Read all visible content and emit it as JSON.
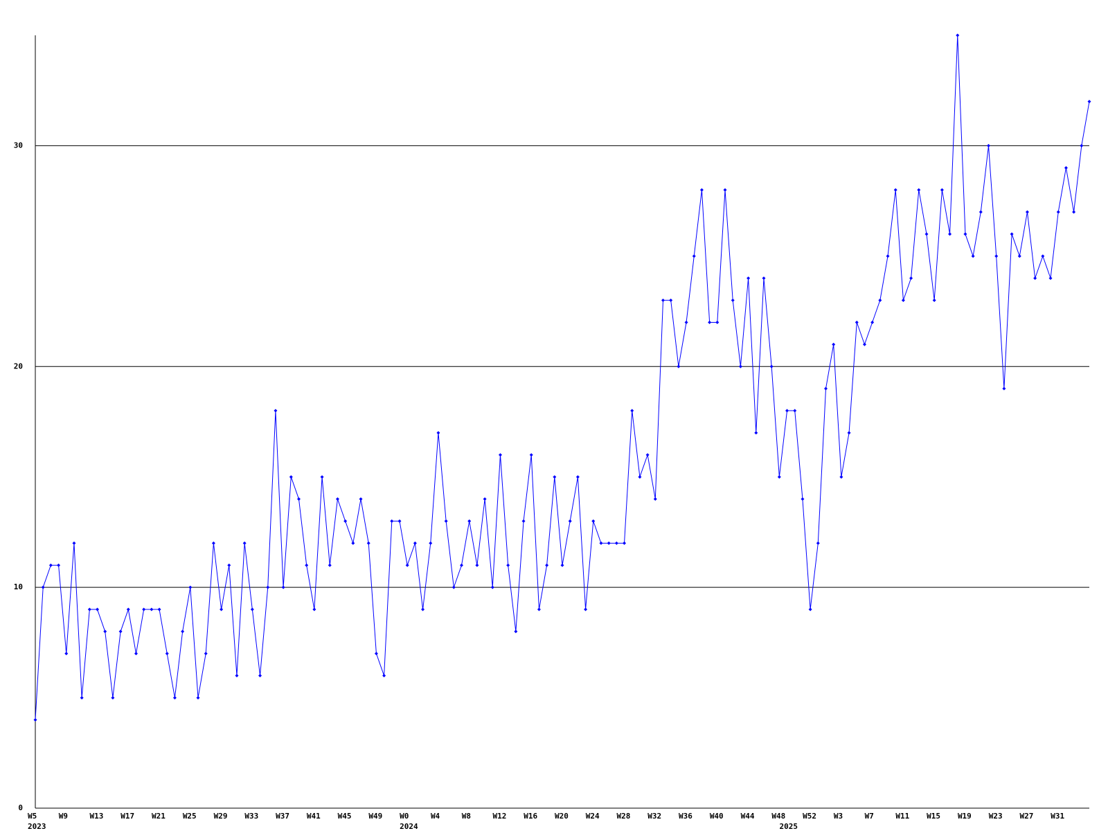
{
  "chart_data": {
    "type": "line",
    "categories": [
      "W5",
      null,
      null,
      null,
      "W9",
      null,
      null,
      null,
      "W13",
      null,
      null,
      null,
      "W17",
      null,
      null,
      null,
      "W21",
      null,
      null,
      null,
      "W25",
      null,
      null,
      null,
      "W29",
      null,
      null,
      null,
      "W33",
      null,
      null,
      null,
      "W37",
      null,
      null,
      null,
      "W41",
      null,
      null,
      null,
      "W45",
      null,
      null,
      null,
      "W49",
      null,
      null,
      null,
      "W0",
      null,
      null,
      null,
      "W4",
      null,
      null,
      null,
      "W8",
      null,
      null,
      null,
      "W12",
      null,
      null,
      null,
      "W16",
      null,
      null,
      null,
      "W20",
      null,
      null,
      null,
      "W24",
      null,
      null,
      null,
      "W28",
      null,
      null,
      null,
      "W32",
      null,
      null,
      null,
      "W36",
      null,
      null,
      null,
      "W40",
      null,
      null,
      null,
      "W44",
      null,
      null,
      null,
      "W48",
      null,
      null,
      null,
      "W52",
      null,
      null,
      null,
      "W3",
      null,
      null,
      null,
      "W7",
      null,
      null,
      null,
      "W11",
      null,
      null,
      null,
      "W15",
      null,
      null,
      null,
      "W19",
      null,
      null,
      null,
      "W23",
      null,
      null,
      null,
      "W27",
      null,
      null,
      null,
      "W31",
      null,
      null,
      null,
      null
    ],
    "years": [
      "2023",
      null,
      null,
      null,
      null,
      null,
      null,
      null,
      null,
      null,
      null,
      null,
      null,
      null,
      null,
      null,
      null,
      null,
      null,
      null,
      null,
      null,
      null,
      null,
      null,
      null,
      null,
      null,
      null,
      null,
      null,
      null,
      null,
      null,
      null,
      null,
      null,
      null,
      null,
      null,
      null,
      null,
      null,
      null,
      null,
      null,
      null,
      null,
      "2024",
      null,
      null,
      null,
      null,
      null,
      null,
      null,
      null,
      null,
      null,
      null,
      null,
      null,
      null,
      null,
      null,
      null,
      null,
      null,
      null,
      null,
      null,
      null,
      null,
      null,
      null,
      null,
      null,
      null,
      null,
      null,
      null,
      null,
      null,
      null,
      null,
      null,
      null,
      null,
      null,
      null,
      null,
      null,
      null,
      null,
      null,
      null,
      null,
      "2025",
      null,
      null,
      null,
      null,
      null,
      null,
      null,
      null,
      null,
      null,
      null,
      null,
      null,
      null,
      null,
      null,
      null,
      null,
      null,
      null,
      null,
      null,
      null,
      null,
      null,
      null,
      null,
      null,
      null,
      null,
      null,
      null,
      null,
      null,
      null
    ],
    "series": [
      {
        "color": "#0000ff",
        "values": [
          4,
          10,
          11,
          11,
          7,
          12,
          5,
          9,
          9,
          8,
          5,
          8,
          9,
          7,
          9,
          9,
          9,
          7,
          5,
          8,
          10,
          5,
          7,
          12,
          9,
          11,
          6,
          12,
          9,
          6,
          10,
          18,
          10,
          15,
          14,
          11,
          9,
          15,
          11,
          14,
          13,
          12,
          14,
          12,
          7,
          6,
          13,
          13,
          11,
          12,
          9,
          12,
          17,
          13,
          10,
          11,
          13,
          11,
          14,
          10,
          16,
          11,
          8,
          13,
          16,
          9,
          11,
          15,
          11,
          13,
          15,
          9,
          13,
          12,
          12,
          12,
          12,
          18,
          15,
          16,
          14,
          23,
          23,
          20,
          22,
          25,
          28,
          22,
          22,
          28,
          23,
          20,
          24,
          17,
          24,
          20,
          15,
          18,
          18,
          14,
          9,
          12,
          19,
          21,
          15,
          17,
          22,
          21,
          22,
          23,
          25,
          28,
          23,
          24,
          28,
          26,
          23,
          28,
          26,
          35,
          26,
          25,
          27,
          30,
          25,
          19,
          26,
          25,
          27,
          24,
          25,
          24,
          27,
          29,
          27,
          30,
          32
        ]
      }
    ],
    "ylim": [
      0,
      35
    ],
    "yticks": [
      0,
      10,
      20,
      30
    ],
    "grid": true
  }
}
